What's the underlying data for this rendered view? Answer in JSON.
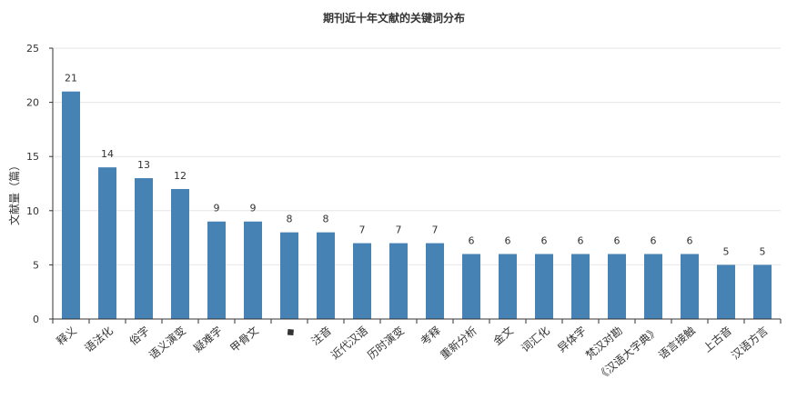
{
  "chart_data": {
    "type": "bar",
    "title": "期刊近十年文献的关键词分布",
    "xlabel": "",
    "ylabel": "文献量（篇）",
    "ylim": [
      0,
      25
    ],
    "yticks": [
      0,
      5,
      10,
      15,
      20,
      25
    ],
    "grid": true,
    "legend": false,
    "bar_color": "#4682b4",
    "categories": [
      "释义",
      "语法化",
      "俗字",
      "语义演变",
      "疑难字",
      "甲骨文",
      "◆",
      "注音",
      "近代汉语",
      "历时演变",
      "考释",
      "重新分析",
      "金文",
      "词汇化",
      "异体字",
      "梵汉对勘",
      "《汉语大字典》",
      "语言接触",
      "上古音",
      "汉语方言"
    ],
    "values": [
      21,
      14,
      13,
      12,
      9,
      9,
      8,
      8,
      7,
      7,
      7,
      6,
      6,
      6,
      6,
      6,
      6,
      6,
      5,
      5
    ]
  }
}
